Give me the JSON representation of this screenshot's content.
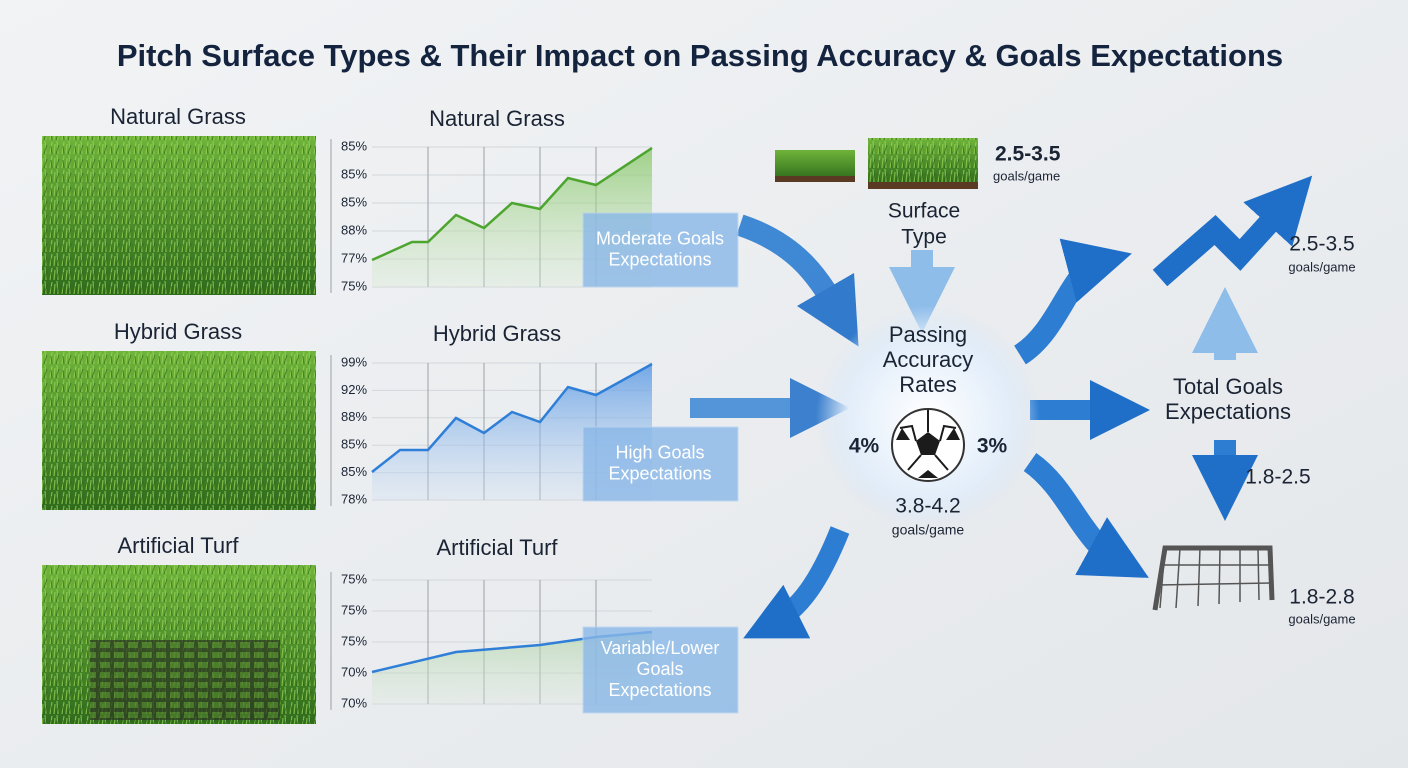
{
  "title": "Pitch Surface Types & Their Impact on Passing Accuracy & Goals Expectations",
  "surfaces": [
    {
      "label": "Natural Grass",
      "chart_title": "Natural Grass",
      "y_labels": [
        "85%",
        "85%",
        "85%",
        "88%",
        "77%",
        "75%"
      ],
      "callout": [
        "Moderate Goals",
        "Expectations"
      ]
    },
    {
      "label": "Hybrid Grass",
      "chart_title": "Hybrid Grass",
      "y_labels": [
        "99%",
        "92%",
        "88%",
        "85%",
        "85%",
        "78%"
      ],
      "callout": [
        "High Goals",
        "Expectations"
      ]
    },
    {
      "label": "Artificial Turf",
      "chart_title": "Artificial Turf",
      "y_labels": [
        "75%",
        "75%",
        "75%",
        "70%",
        "70%"
      ],
      "callout": [
        "Variable/Lower",
        "Goals",
        "Expectations"
      ]
    }
  ],
  "surface_type": {
    "range": "2.5-3.5",
    "unit": "goals/game",
    "label": [
      "Surface",
      "Type"
    ]
  },
  "center": {
    "label": [
      "Passing",
      "Accuracy",
      "Rates"
    ],
    "left": "4%",
    "right": "3%",
    "range": "3.8-4.2",
    "unit": "goals/game"
  },
  "total": {
    "label": [
      "Total Goals",
      "Expectations"
    ],
    "trend_range": "2.5-3.5",
    "trend_unit": "goals/game",
    "down_range": "1.8-2.5",
    "goal_range": "1.8-2.8",
    "goal_unit": "goals/game"
  }
}
